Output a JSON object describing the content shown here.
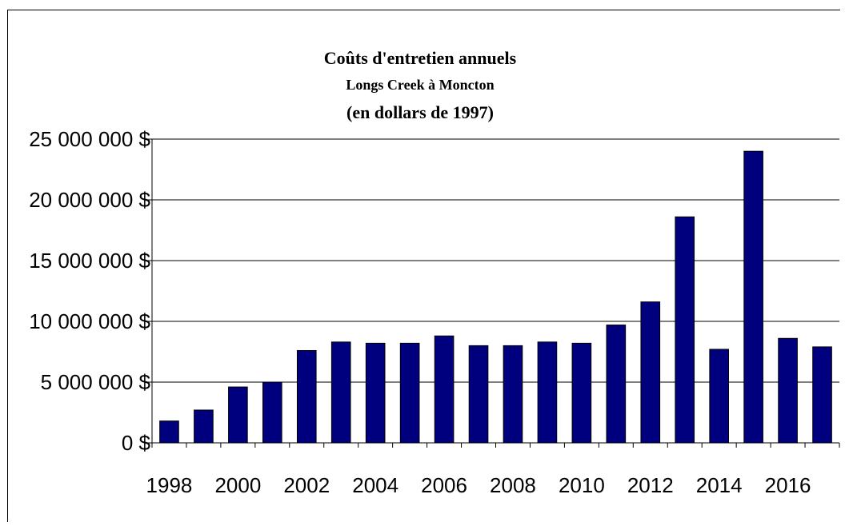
{
  "chart_data": {
    "type": "bar",
    "title": "Coûts d'entretien annuels",
    "subtitle": "Longs Creek à Moncton",
    "subtitle2": "(en dollars de 1997)",
    "xlabel": "",
    "ylabel": "",
    "ylim": [
      0,
      25000000
    ],
    "yticks": [
      0,
      5000000,
      10000000,
      15000000,
      20000000,
      25000000
    ],
    "ytick_labels": [
      "0  $",
      "5 000 000 $",
      "10 000 000 $",
      "15 000 000 $",
      "20 000 000 $",
      "25 000 000 $"
    ],
    "categories": [
      "1998",
      "1999",
      "2000",
      "2001",
      "2002",
      "2003",
      "2004",
      "2005",
      "2006",
      "2007",
      "2008",
      "2009",
      "2010",
      "2011",
      "2012",
      "2013",
      "2014",
      "2015",
      "2016",
      "2017"
    ],
    "xtick_labels": [
      "1998",
      "2000",
      "2002",
      "2004",
      "2006",
      "2008",
      "2010",
      "2012",
      "2014",
      "2016"
    ],
    "values": [
      1800000,
      2700000,
      4600000,
      5000000,
      7600000,
      8300000,
      8200000,
      8200000,
      8800000,
      8000000,
      8000000,
      8300000,
      8200000,
      9700000,
      11600000,
      18600000,
      7700000,
      24000000,
      8600000,
      7900000
    ],
    "bar_color": "#00007F",
    "grid": true,
    "legend": "none"
  }
}
